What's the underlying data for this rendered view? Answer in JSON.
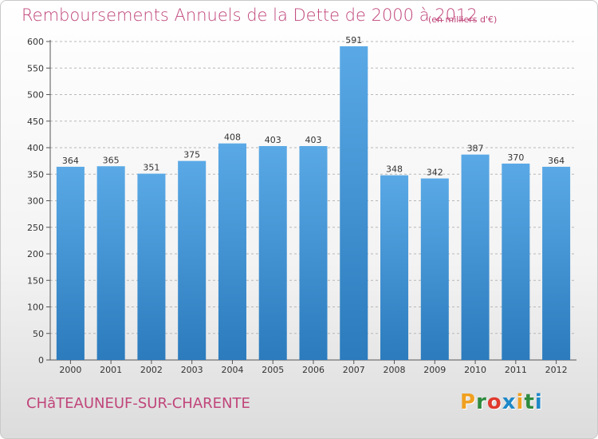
{
  "header": {
    "title": "Remboursements Annuels de la Dette de 2000 à 2012",
    "subtitle": "(en milliers d'€)"
  },
  "footer": {
    "commune": "CHâTEAUNEUF-SUR-CHARENTE",
    "logo_text": "Proxiti"
  },
  "colors": {
    "bar_top": "#5aa9e6",
    "bar_bottom": "#2b7bbd",
    "title": "#c0457a",
    "grid": "#b8b8b8"
  },
  "chart_data": {
    "type": "bar",
    "title": "Remboursements Annuels de la Dette de 2000 à 2012",
    "subtitle": "(en milliers d'€)",
    "categories": [
      "2000",
      "2001",
      "2002",
      "2003",
      "2004",
      "2005",
      "2006",
      "2007",
      "2008",
      "2009",
      "2010",
      "2011",
      "2012"
    ],
    "values": [
      364,
      365,
      351,
      375,
      408,
      403,
      403,
      591,
      348,
      342,
      387,
      370,
      364
    ],
    "ylim": [
      0,
      600
    ],
    "yticks": [
      0,
      50,
      100,
      150,
      200,
      250,
      300,
      350,
      400,
      450,
      500,
      550,
      600
    ],
    "grid": true,
    "xlabel": "",
    "ylabel": ""
  }
}
